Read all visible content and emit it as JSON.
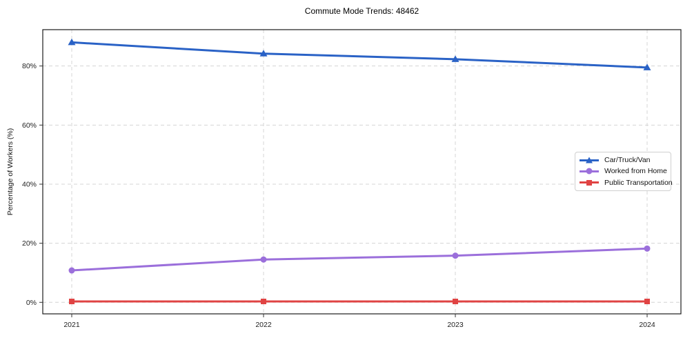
{
  "page": {
    "title": "Commute Mode Trends: 48462"
  },
  "chart_data": {
    "type": "line",
    "title": "Commute Mode Trends: 48462",
    "xlabel": "",
    "ylabel": "Percentage of Workers (%)",
    "x_categories": [
      "2021",
      "2022",
      "2023",
      "2024"
    ],
    "series": [
      {
        "name": "Car/Truck/Van",
        "marker": "triangle",
        "color": "#2a62c6",
        "values": [
          88.0,
          84.2,
          82.3,
          79.5
        ]
      },
      {
        "name": "Worked from Home",
        "marker": "circle",
        "color": "#9b6fdb",
        "values": [
          10.8,
          14.5,
          15.8,
          18.2
        ]
      },
      {
        "name": "Public Transportation",
        "marker": "square",
        "color": "#e04343",
        "values": [
          0.3,
          0.3,
          0.3,
          0.3
        ]
      }
    ],
    "yticks": {
      "values": [
        0,
        20,
        40,
        60,
        80
      ],
      "labels": [
        "0%",
        "20%",
        "40%",
        "60%",
        "80%"
      ]
    },
    "ylim": [
      -3.9,
      92.3
    ],
    "grid": true,
    "grid_style": "dashed",
    "legend": {
      "position": "center-right"
    }
  },
  "colors": {
    "background": "#ffffff",
    "grid": "#d4d4d4",
    "spine": "#1a1a1a",
    "tick": "#333333",
    "tick_text": "#222222",
    "series_blue": "#2a62c6",
    "series_purple": "#9b6fdb",
    "series_red": "#e04343"
  }
}
